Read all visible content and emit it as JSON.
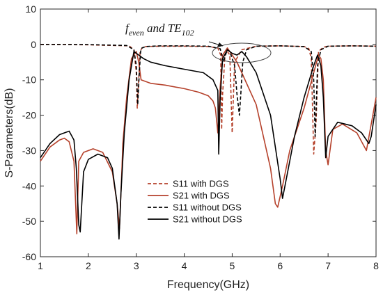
{
  "chart_data": {
    "type": "line",
    "xlabel": "Frequency(GHz)",
    "ylabel": "S-Parameters(dB)",
    "xlim": [
      1,
      8
    ],
    "ylim": [
      -60,
      10
    ],
    "xticks": [
      1,
      2,
      3,
      4,
      5,
      6,
      7,
      8
    ],
    "yticks": [
      10,
      0,
      -10,
      -20,
      -30,
      -40,
      -50,
      -60
    ],
    "grid": false,
    "legend_position": "lower-center",
    "annotation": {
      "main": "f",
      "sub1": "even",
      "mid": " and TE",
      "sub2": "102",
      "x": 5.05,
      "y": -1.5
    },
    "series": [
      {
        "name": "S11 with DGS",
        "color": "#b5412b",
        "dash": "dashed",
        "x": [
          1.0,
          2.0,
          2.85,
          2.95,
          3.0,
          3.02,
          3.05,
          3.08,
          3.12,
          3.2,
          3.5,
          4.0,
          4.5,
          4.7,
          4.76,
          4.78,
          4.8,
          4.85,
          4.9,
          4.95,
          5.0,
          5.05,
          5.2,
          5.5,
          6.0,
          6.5,
          6.6,
          6.65,
          6.7,
          6.75,
          6.8,
          6.9,
          7.0,
          7.5,
          8.0
        ],
        "y": [
          0.0,
          -0.1,
          -0.4,
          -1.5,
          -8,
          -18,
          -10,
          -2,
          -1.0,
          -0.6,
          -0.5,
          -0.5,
          -0.6,
          -1.0,
          -3,
          -24,
          -14,
          -3,
          -2,
          -3,
          -25,
          -5,
          -1.5,
          -0.5,
          -0.4,
          -0.6,
          -1.2,
          -4,
          -31,
          -22,
          -2,
          -0.8,
          -0.5,
          -0.4,
          -0.5
        ]
      },
      {
        "name": "S21 with DGS",
        "color": "#b5412b",
        "dash": "solid",
        "x": [
          1.0,
          1.2,
          1.4,
          1.5,
          1.6,
          1.7,
          1.72,
          1.76,
          1.8,
          1.9,
          2.1,
          2.3,
          2.5,
          2.6,
          2.65,
          2.7,
          2.72,
          2.8,
          2.9,
          3.0,
          3.05,
          3.1,
          3.3,
          3.6,
          4.0,
          4.3,
          4.5,
          4.6,
          4.65,
          4.7,
          4.75,
          4.8,
          4.9,
          5.0,
          5.1,
          5.2,
          5.5,
          5.8,
          5.9,
          5.95,
          6.05,
          6.2,
          6.5,
          6.7,
          6.8,
          6.85,
          6.9,
          6.95,
          7.0,
          7.1,
          7.3,
          7.6,
          7.8,
          8.0
        ],
        "y": [
          -33,
          -29,
          -27,
          -26.5,
          -27.5,
          -33,
          -40,
          -53.5,
          -33,
          -30.5,
          -29.5,
          -30.5,
          -36,
          -45,
          -52,
          -35,
          -28,
          -15,
          -4,
          -2,
          -5,
          -10,
          -11,
          -11.5,
          -12.5,
          -13.5,
          -14.5,
          -16,
          -18,
          -25,
          -12,
          -3,
          -1,
          -3,
          -5,
          -8,
          -17,
          -35,
          -45,
          -46,
          -40,
          -30,
          -18,
          -8,
          -3,
          -4,
          -10,
          -30,
          -34,
          -24,
          -22.5,
          -25,
          -30,
          -15
        ]
      },
      {
        "name": "S11 without DGS",
        "color": "#000000",
        "dash": "dashed",
        "x": [
          1.0,
          2.0,
          2.8,
          2.95,
          3.0,
          3.03,
          3.06,
          3.09,
          3.12,
          3.2,
          3.5,
          4.0,
          4.5,
          4.75,
          4.82,
          4.86,
          4.9,
          4.95,
          5.0,
          5.05,
          5.1,
          5.15,
          5.18,
          5.22,
          5.3,
          5.5,
          6.0,
          6.5,
          6.65,
          6.7,
          6.73,
          6.78,
          6.85,
          7.0,
          7.5,
          8.0
        ],
        "y": [
          0.0,
          -0.05,
          -0.3,
          -1.5,
          -6,
          -17,
          -9,
          -2,
          -1.0,
          -0.6,
          -0.4,
          -0.4,
          -0.5,
          -1.2,
          -5,
          -3,
          -1.5,
          -2,
          -4,
          -6,
          -14,
          -20,
          -14,
          -5,
          -1.5,
          -0.5,
          -0.4,
          -0.6,
          -2,
          -10,
          -26,
          -6,
          -1.5,
          -0.5,
          -0.4,
          -0.5
        ]
      },
      {
        "name": "S21 without DGS",
        "color": "#000000",
        "dash": "solid",
        "x": [
          1.0,
          1.2,
          1.4,
          1.6,
          1.7,
          1.75,
          1.8,
          1.83,
          1.9,
          2.0,
          2.2,
          2.4,
          2.5,
          2.6,
          2.64,
          2.68,
          2.75,
          2.85,
          2.95,
          3.05,
          3.15,
          3.3,
          3.6,
          4.0,
          4.4,
          4.6,
          4.7,
          4.72,
          4.75,
          4.8,
          4.9,
          5.0,
          5.1,
          5.2,
          5.3,
          5.5,
          5.8,
          6.0,
          6.05,
          6.1,
          6.3,
          6.5,
          6.7,
          6.78,
          6.85,
          6.9,
          6.95,
          7.0,
          7.2,
          7.5,
          7.7,
          7.85,
          7.9,
          8.0
        ],
        "y": [
          -32,
          -28,
          -25.5,
          -24.5,
          -27,
          -35,
          -51,
          -53,
          -36,
          -32.5,
          -31,
          -32,
          -35,
          -45,
          -55,
          -42,
          -25,
          -10,
          -2,
          -3,
          -4,
          -5,
          -6,
          -7,
          -8,
          -10,
          -13,
          -31,
          -15,
          -4,
          -1.5,
          -2.5,
          -3,
          -2,
          -3.5,
          -8,
          -20,
          -38,
          -43.5,
          -40,
          -26,
          -15,
          -6,
          -3,
          -6,
          -15,
          -32,
          -26,
          -22,
          -23,
          -25,
          -28,
          -26,
          -17
        ]
      }
    ]
  }
}
